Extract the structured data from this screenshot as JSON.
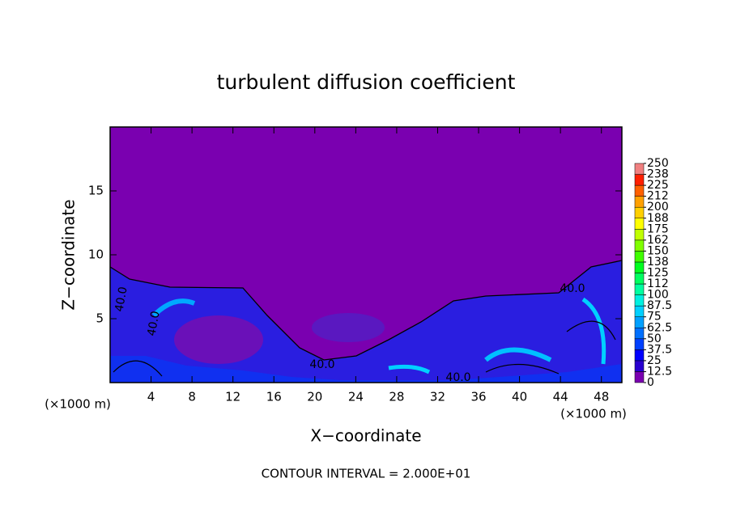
{
  "chart_data": {
    "type": "contour",
    "title": "turbulent diffusion coefficient",
    "x_label": "X−coordinate",
    "y_label": "Z−coordinate",
    "x_unit_label": "(×1000 m)",
    "footnote": "CONTOUR INTERVAL = 2.000E+01",
    "xlim": [
      0,
      50
    ],
    "xticks": [
      4,
      8,
      12,
      16,
      20,
      24,
      28,
      32,
      36,
      40,
      44,
      48
    ],
    "ylim": [
      0,
      20
    ],
    "yticks": [
      5,
      10,
      15
    ],
    "contour_labels": [
      "40.0",
      "40.0",
      "40.0",
      "40.0",
      "40.0"
    ],
    "colorbar": {
      "levels": [
        0,
        12.5,
        25,
        37.5,
        50,
        62.5,
        75,
        87.5,
        100,
        112.5,
        125,
        137.5,
        150,
        162.5,
        175,
        187.5,
        200,
        212.5,
        225,
        237.5,
        250
      ],
      "ticks": [
        0,
        12.5,
        25,
        37.5,
        50,
        62.5,
        75,
        87.5,
        100,
        {
          "value": 112.5,
          "label": "112"
        },
        125,
        {
          "value": 137.5,
          "label": "138"
        },
        150,
        {
          "value": 162.5,
          "label": "162"
        },
        175,
        {
          "value": 187.5,
          "label": "188"
        },
        200,
        {
          "value": 212.5,
          "label": "212"
        },
        225,
        {
          "value": 237.5,
          "label": "238"
        },
        250
      ],
      "colors": [
        "#7a00b0",
        "#2800d0",
        "#0000ff",
        "#0040ff",
        "#0070ff",
        "#00a0ff",
        "#00d0ff",
        "#00f0e0",
        "#00ffa0",
        "#00ff60",
        "#00ff20",
        "#40ff00",
        "#80ff00",
        "#c0ff00",
        "#ffff00",
        "#ffd000",
        "#ffa000",
        "#ff6000",
        "#ff2000",
        "#f08080"
      ]
    }
  }
}
